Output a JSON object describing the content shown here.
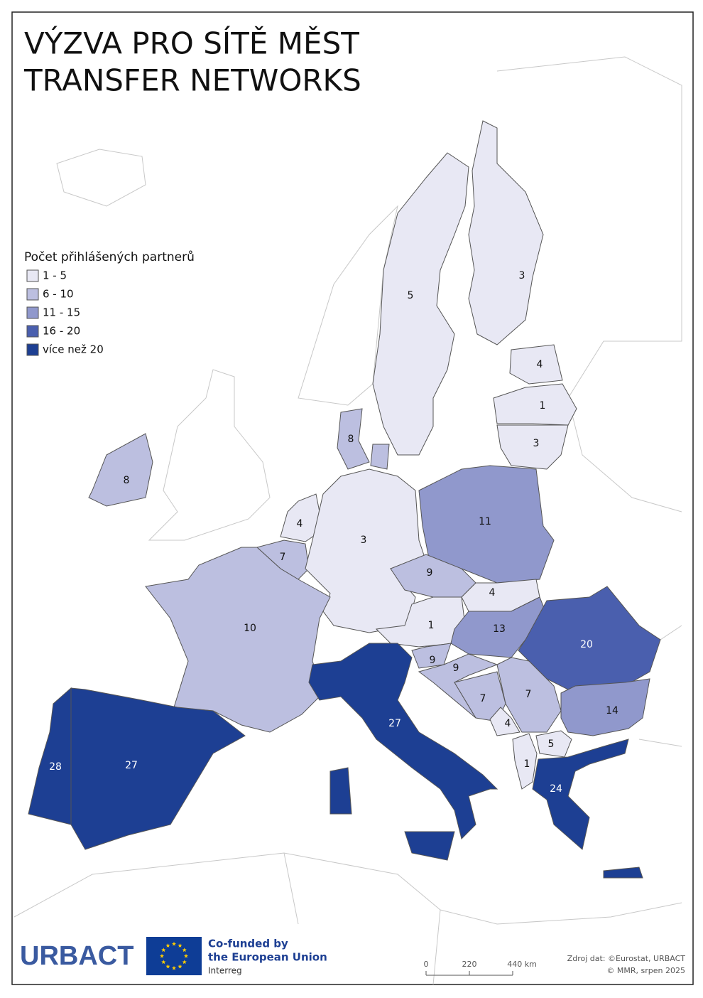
{
  "title": [
    "VÝZVA PRO SÍTĚ MĚST",
    "TRANSFER NETWORKS"
  ],
  "legend": {
    "title": "Počet přihlášených partnerů",
    "classes": [
      {
        "label": "1 - 5",
        "color": "#e8e8f4"
      },
      {
        "label": "6 - 10",
        "color": "#bcbfe0"
      },
      {
        "label": "11 - 15",
        "color": "#9098cc"
      },
      {
        "label": "16 - 20",
        "color": "#4a5fae"
      },
      {
        "label": "více než 20",
        "color": "#1d3f93"
      }
    ]
  },
  "regions": [
    {
      "value": 5,
      "color": "#e8e8f4"
    },
    {
      "value": 3,
      "color": "#e8e8f4"
    },
    {
      "value": 4,
      "color": "#e8e8f4"
    },
    {
      "value": 1,
      "color": "#e8e8f4"
    },
    {
      "value": 3,
      "color": "#e8e8f4"
    },
    {
      "value": 8,
      "color": "#bcbfe0"
    },
    {
      "value": 8,
      "color": "#bcbfe0"
    },
    {
      "value": 4,
      "color": "#e8e8f4"
    },
    {
      "value": 7,
      "color": "#bcbfe0"
    },
    {
      "value": 3,
      "color": "#e8e8f4"
    },
    {
      "value": 11,
      "color": "#9098cc"
    },
    {
      "value": 9,
      "color": "#bcbfe0"
    },
    {
      "value": 4,
      "color": "#e8e8f4"
    },
    {
      "value": 1,
      "color": "#e8e8f4"
    },
    {
      "value": 13,
      "color": "#9098cc"
    },
    {
      "value": 20,
      "color": "#4a5fae"
    },
    {
      "value": 10,
      "color": "#bcbfe0"
    },
    {
      "value": 9,
      "color": "#bcbfe0"
    },
    {
      "value": 9,
      "color": "#bcbfe0"
    },
    {
      "value": 7,
      "color": "#bcbfe0"
    },
    {
      "value": 7,
      "color": "#bcbfe0"
    },
    {
      "value": 14,
      "color": "#9098cc"
    },
    {
      "value": 4,
      "color": "#e8e8f4"
    },
    {
      "value": 5,
      "color": "#e8e8f4"
    },
    {
      "value": 1,
      "color": "#e8e8f4"
    },
    {
      "value": 24,
      "color": "#1d3f93"
    },
    {
      "value": 27,
      "color": "#1d3f93"
    },
    {
      "value": 27,
      "color": "#1d3f93"
    },
    {
      "value": 28,
      "color": "#1d3f93"
    }
  ],
  "scale": {
    "ticks": [
      "0",
      "220",
      "440 km"
    ]
  },
  "source": [
    "Zdroj dat: ©Eurostat, URBACT",
    "© MMR, srpen 2025"
  ],
  "logos": {
    "urbact": "URBACT",
    "eu": [
      "Co-funded by",
      "the European Union"
    ],
    "interreg": "Interreg"
  }
}
